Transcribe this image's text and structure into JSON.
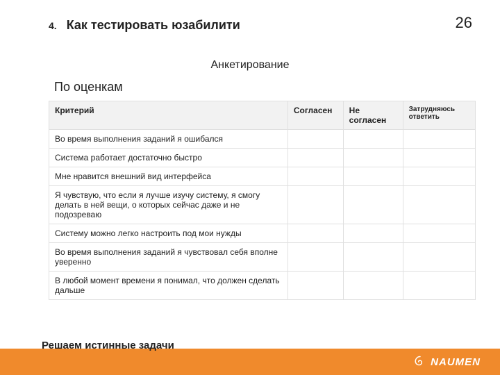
{
  "header": {
    "section_number": "4.",
    "section_title": "Как тестировать юзабилити",
    "page_number": "26"
  },
  "subtitle": "Анкетирование",
  "sub2": "По оценкам",
  "table": {
    "columns": [
      "Критерий",
      "Согласен",
      "Не согласен",
      "Затрудняюсь ответить"
    ],
    "rows": [
      [
        "Во время выполнения заданий я ошибался",
        "",
        "",
        ""
      ],
      [
        "Система работает достаточно быстро",
        "",
        "",
        ""
      ],
      [
        "Мне нравится внешний вид интерфейса",
        "",
        "",
        ""
      ],
      [
        "Я чувствую, что если я лучше изучу систему, я смогу делать в ней вещи, о которых сейчас даже и не подозреваю",
        "",
        "",
        ""
      ],
      [
        "Систему можно легко настроить под мои нужды",
        "",
        "",
        ""
      ],
      [
        "Во время выполнения заданий я чувствовал себя\nвполне уверенно",
        "",
        "",
        ""
      ],
      [
        "В любой момент времени я понимал, что должен сделать дальше",
        "",
        "",
        ""
      ]
    ]
  },
  "footer": {
    "tagline": "Решаем истинные задачи",
    "brand": "NAUMEN",
    "bar_color": "#f08a2c"
  }
}
